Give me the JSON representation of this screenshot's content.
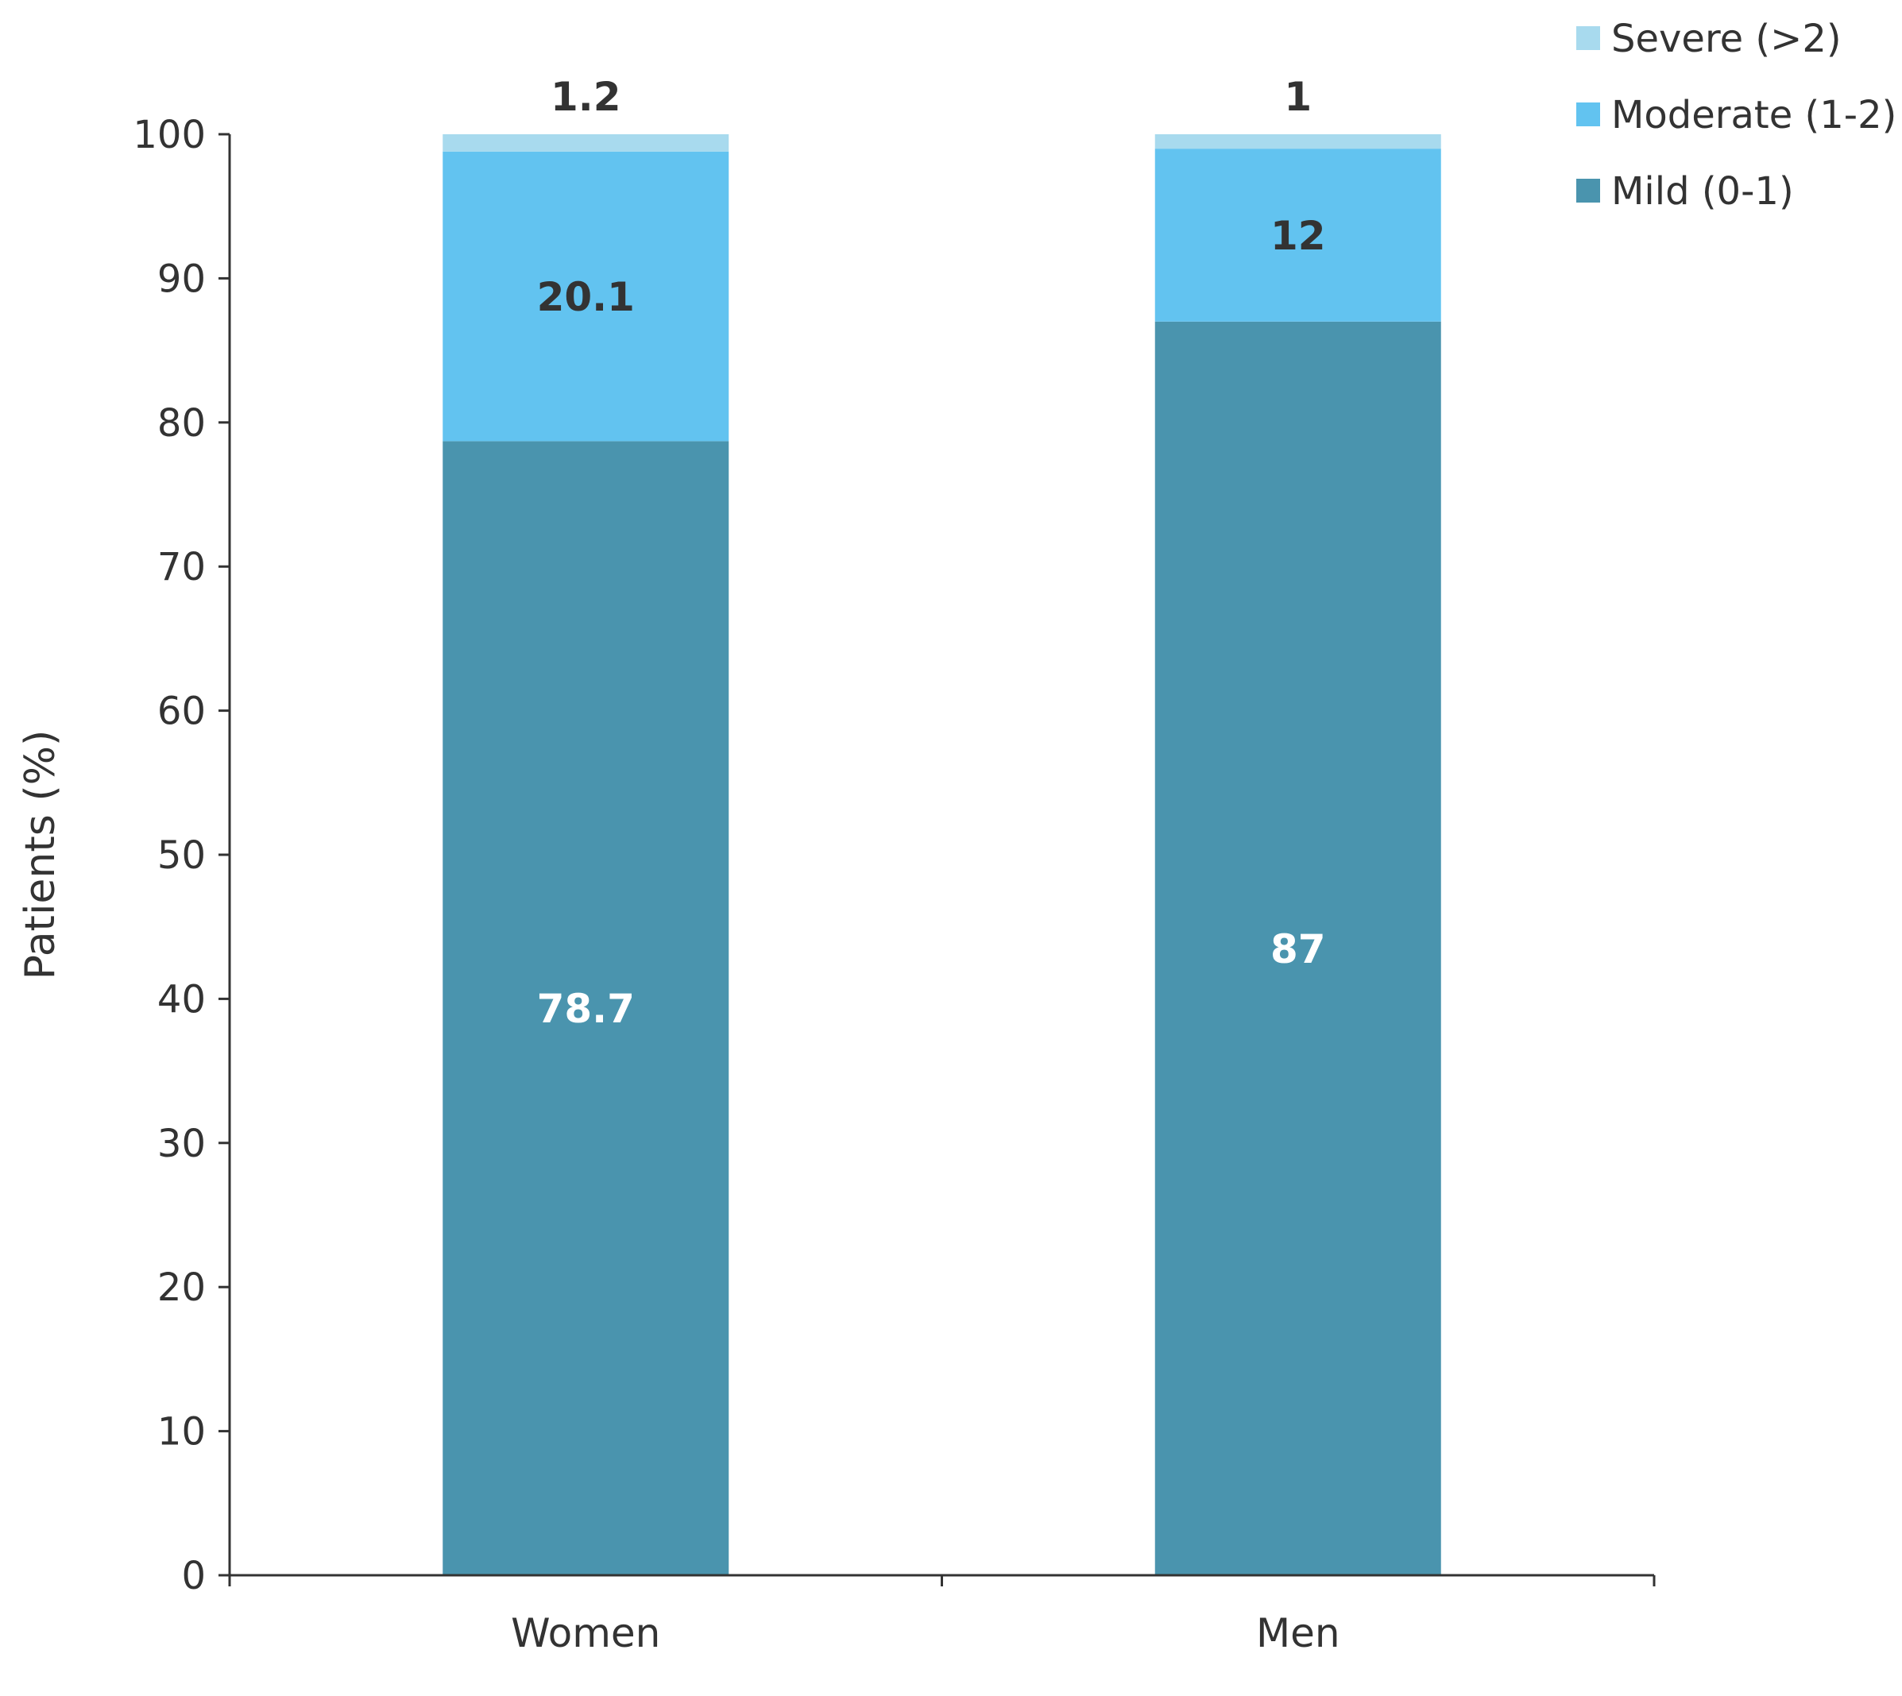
{
  "chart_data": {
    "type": "bar",
    "stacked": true,
    "categories": [
      "Women",
      "Men"
    ],
    "series": [
      {
        "name": "Mild (0-1)",
        "values": [
          78.7,
          87
        ],
        "labels": [
          "78.7",
          "87"
        ],
        "color": "#4A94AE",
        "label_color": "#ffffff"
      },
      {
        "name": "Moderate (1-2)",
        "values": [
          20.1,
          12
        ],
        "labels": [
          "20.1",
          "12"
        ],
        "color": "#62C3F0",
        "label_color": "#333333"
      },
      {
        "name": "Severe (>2)",
        "values": [
          1.2,
          1
        ],
        "labels": [
          "1.2",
          "1"
        ],
        "color": "#A8DAEE",
        "label_color": "#333333"
      }
    ],
    "legend_order": [
      2,
      1,
      0
    ],
    "ylabel": "Patients (%)",
    "xlabel": "",
    "ylim": [
      0,
      100
    ],
    "yticks": [
      "0",
      "10",
      "20",
      "30",
      "40",
      "50",
      "60",
      "70",
      "80",
      "90",
      "100"
    ],
    "grid": false,
    "legend_position": "top-right"
  }
}
